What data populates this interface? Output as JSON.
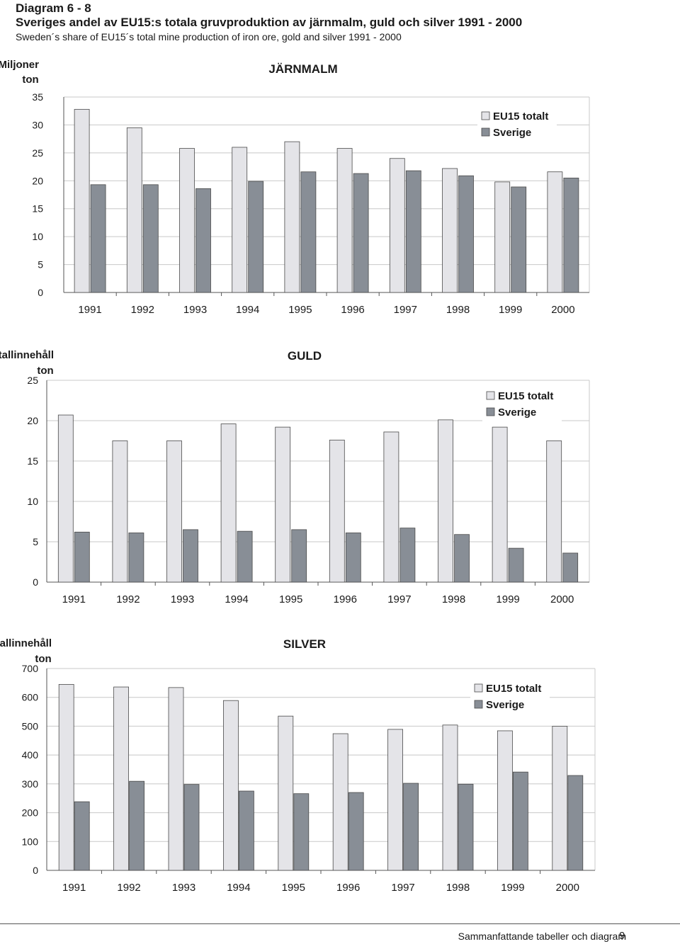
{
  "header": {
    "diagram_number": "Diagram 6 - 8",
    "title": "Sveriges andel av EU15:s totala gruvproduktion av järnmalm, guld och silver 1991 - 2000",
    "subtitle": "Sweden´s share of EU15´s total mine production of iron ore, gold and silver 1991 - 2000"
  },
  "footer": {
    "text": "Sammanfattande tabeller och diagram",
    "page_number": "9"
  },
  "colors": {
    "eu15": "#e4e4e8",
    "sverige": "#888e96",
    "bar_stroke": "#4a4a4a",
    "grid": "#c8c8c8"
  },
  "chart_data": [
    {
      "type": "bar",
      "title": "JÄRNMALM",
      "ylabel": "Miljoner ton",
      "ylim": [
        0,
        35
      ],
      "yticks": [
        0,
        5,
        10,
        15,
        20,
        25,
        30,
        35
      ],
      "grid": true,
      "legend": "top-right",
      "categories": [
        "1991",
        "1992",
        "1993",
        "1994",
        "1995",
        "1996",
        "1997",
        "1998",
        "1999",
        "2000"
      ],
      "series": [
        {
          "name": "EU15 totalt",
          "values": [
            32.8,
            29.5,
            25.8,
            26.0,
            27.0,
            25.8,
            24.0,
            22.2,
            19.8,
            21.6
          ]
        },
        {
          "name": "Sverige",
          "values": [
            19.3,
            19.3,
            18.6,
            19.9,
            21.6,
            21.3,
            21.8,
            20.9,
            18.9,
            20.5
          ]
        }
      ]
    },
    {
      "type": "bar",
      "title": "GULD",
      "ylabel": "Metallinnehåll ton",
      "ylim": [
        0,
        25
      ],
      "yticks": [
        0,
        5,
        10,
        15,
        20,
        25
      ],
      "grid": true,
      "legend": "top-right",
      "categories": [
        "1991",
        "1992",
        "1993",
        "1994",
        "1995",
        "1996",
        "1997",
        "1998",
        "1999",
        "2000"
      ],
      "series": [
        {
          "name": "EU15 totalt",
          "values": [
            20.7,
            17.5,
            17.5,
            19.6,
            19.2,
            17.6,
            18.6,
            20.1,
            19.2,
            17.5
          ]
        },
        {
          "name": "Sverige",
          "values": [
            6.2,
            6.1,
            6.5,
            6.3,
            6.5,
            6.1,
            6.7,
            5.9,
            4.2,
            3.6
          ]
        }
      ]
    },
    {
      "type": "bar",
      "title": "SILVER",
      "ylabel": "Metallinnehåll ton",
      "ylim": [
        0,
        700
      ],
      "yticks": [
        0,
        100,
        200,
        300,
        400,
        500,
        600,
        700
      ],
      "grid": true,
      "legend": "top-right",
      "categories": [
        "1991",
        "1992",
        "1993",
        "1994",
        "1995",
        "1996",
        "1997",
        "1998",
        "1999",
        "2000"
      ],
      "series": [
        {
          "name": "EU15 totalt",
          "values": [
            645,
            636,
            634,
            589,
            535,
            474,
            489,
            504,
            484,
            500
          ]
        },
        {
          "name": "Sverige",
          "values": [
            238,
            309,
            298,
            275,
            266,
            270,
            302,
            299,
            341,
            329
          ]
        }
      ]
    }
  ]
}
